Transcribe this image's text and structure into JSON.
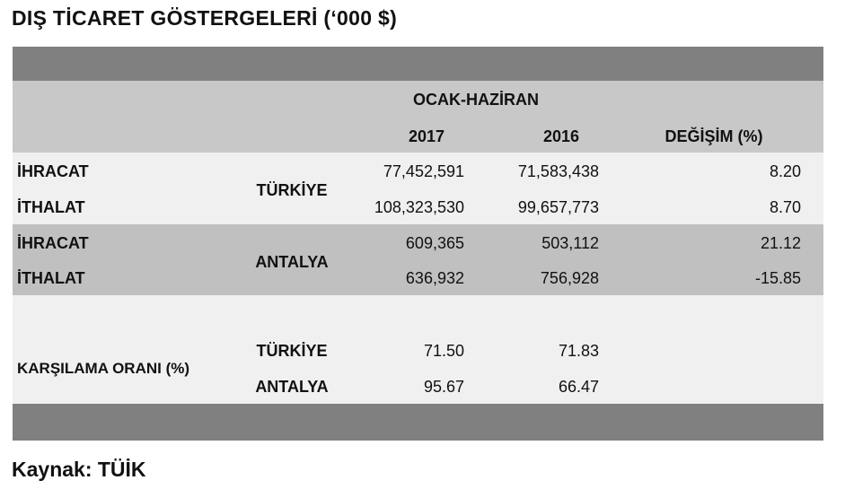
{
  "title": "DIŞ TİCARET GÖSTERGELERİ  (‘000 $)",
  "header": {
    "period": "OCAK-HAZİRAN",
    "col_2017": "2017",
    "col_2016": "2016",
    "col_change": "DEĞİŞİM (%)"
  },
  "turkiye": {
    "label": "TÜRKİYE",
    "export": {
      "label": "İHRACAT",
      "v2017": "77,452,591",
      "v2016": "71,583,438",
      "change": "8.20"
    },
    "import": {
      "label": "İTHALAT",
      "v2017": "108,323,530",
      "v2016": "99,657,773",
      "change": "8.70"
    }
  },
  "antalya": {
    "label": "ANTALYA",
    "export": {
      "label": "İHRACAT",
      "v2017": "609,365",
      "v2016": "503,112",
      "change": "21.12"
    },
    "import": {
      "label": "İTHALAT",
      "v2017": "636,932",
      "v2016": "756,928",
      "change": "-15.85"
    }
  },
  "coverage": {
    "label": "KARŞILAMA ORANI (%)",
    "turkiye": {
      "label": "TÜRKİYE",
      "v2017": "71.50",
      "v2016": "71.83"
    },
    "antalya": {
      "label": "ANTALYA",
      "v2017": "95.67",
      "v2016": "66.47"
    }
  },
  "source": "Kaynak: TÜİK"
}
